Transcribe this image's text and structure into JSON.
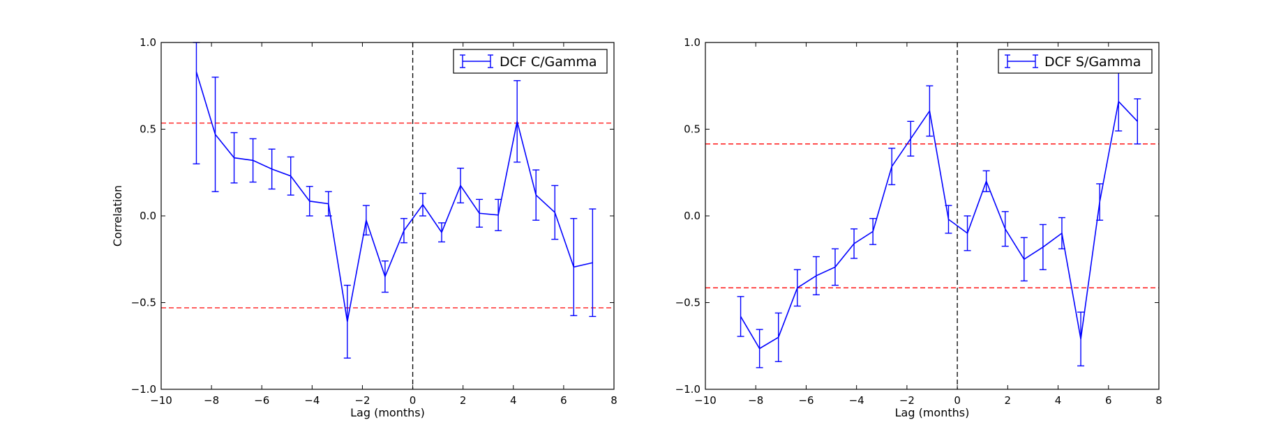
{
  "chart_data": [
    {
      "type": "line",
      "title": "",
      "xlabel": "Lag (months)",
      "ylabel": "Correlation",
      "xlim": [
        -10,
        8
      ],
      "ylim": [
        -1.0,
        1.0
      ],
      "xticks": [
        -10,
        -8,
        -6,
        -4,
        -2,
        0,
        2,
        4,
        6,
        8
      ],
      "yticks": [
        -1.0,
        -0.5,
        0.0,
        0.5,
        1.0
      ],
      "xtick_labels": [
        "−10",
        "−8",
        "−6",
        "−4",
        "−2",
        "0",
        "2",
        "4",
        "6",
        "8"
      ],
      "ytick_labels": [
        "−1.0",
        "−0.5",
        "0.0",
        "0.5",
        "1.0"
      ],
      "grid": false,
      "legend": {
        "position": "top-right",
        "entries": [
          "DCF C/Gamma"
        ]
      },
      "series_color": "#0000ff",
      "significance_color": "#ff0000",
      "zero_line_color": "#000000",
      "significance_levels": [
        0.535,
        -0.53
      ],
      "zero_lag": 0,
      "series": [
        {
          "name": "DCF C/Gamma",
          "x": [
            -8.6,
            -7.85,
            -7.1,
            -6.35,
            -5.6,
            -4.85,
            -4.1,
            -3.35,
            -2.6,
            -1.85,
            -1.1,
            -0.35,
            0.4,
            1.15,
            1.9,
            2.65,
            3.4,
            4.15,
            4.9,
            5.65,
            6.4,
            7.15
          ],
          "y": [
            0.83,
            0.47,
            0.335,
            0.32,
            0.27,
            0.23,
            0.085,
            0.07,
            -0.61,
            -0.025,
            -0.35,
            -0.085,
            0.065,
            -0.095,
            0.175,
            0.015,
            0.005,
            0.545,
            0.12,
            0.02,
            -0.295,
            -0.27
          ],
          "yerr": [
            0.53,
            0.33,
            0.145,
            0.125,
            0.115,
            0.11,
            0.085,
            0.07,
            0.21,
            0.085,
            0.09,
            0.07,
            0.065,
            0.055,
            0.1,
            0.08,
            0.09,
            0.235,
            0.145,
            0.155,
            0.28,
            0.31
          ]
        }
      ]
    },
    {
      "type": "line",
      "title": "",
      "xlabel": "Lag (months)",
      "ylabel": "",
      "xlim": [
        -10,
        8
      ],
      "ylim": [
        -1.0,
        1.0
      ],
      "xticks": [
        -10,
        -8,
        -6,
        -4,
        -2,
        0,
        2,
        4,
        6,
        8
      ],
      "yticks": [
        -1.0,
        -0.5,
        0.0,
        0.5,
        1.0
      ],
      "xtick_labels": [
        "−10",
        "−8",
        "−6",
        "−4",
        "−2",
        "0",
        "2",
        "4",
        "6",
        "8"
      ],
      "ytick_labels": [
        "−1.0",
        "−0.5",
        "0.0",
        "0.5",
        "1.0"
      ],
      "grid": false,
      "legend": {
        "position": "top-right",
        "entries": [
          "DCF S/Gamma"
        ]
      },
      "series_color": "#0000ff",
      "significance_color": "#ff0000",
      "zero_line_color": "#000000",
      "significance_levels": [
        0.415,
        -0.415
      ],
      "zero_lag": 0,
      "series": [
        {
          "name": "DCF S/Gamma",
          "x": [
            -8.6,
            -7.85,
            -7.1,
            -6.35,
            -5.6,
            -4.85,
            -4.1,
            -3.35,
            -2.6,
            -1.85,
            -1.1,
            -0.35,
            0.4,
            1.15,
            1.9,
            2.65,
            3.4,
            4.15,
            4.9,
            5.65,
            6.4,
            7.15
          ],
          "y": [
            -0.58,
            -0.765,
            -0.7,
            -0.415,
            -0.345,
            -0.295,
            -0.16,
            -0.09,
            0.285,
            0.445,
            0.605,
            -0.02,
            -0.1,
            0.2,
            -0.075,
            -0.25,
            -0.18,
            -0.1,
            -0.71,
            0.08,
            0.66,
            0.545
          ],
          "yerr": [
            0.115,
            0.11,
            0.14,
            0.105,
            0.11,
            0.105,
            0.085,
            0.075,
            0.105,
            0.1,
            0.145,
            0.08,
            0.1,
            0.06,
            0.1,
            0.125,
            0.13,
            0.09,
            0.155,
            0.105,
            0.17,
            0.13
          ]
        }
      ]
    }
  ]
}
